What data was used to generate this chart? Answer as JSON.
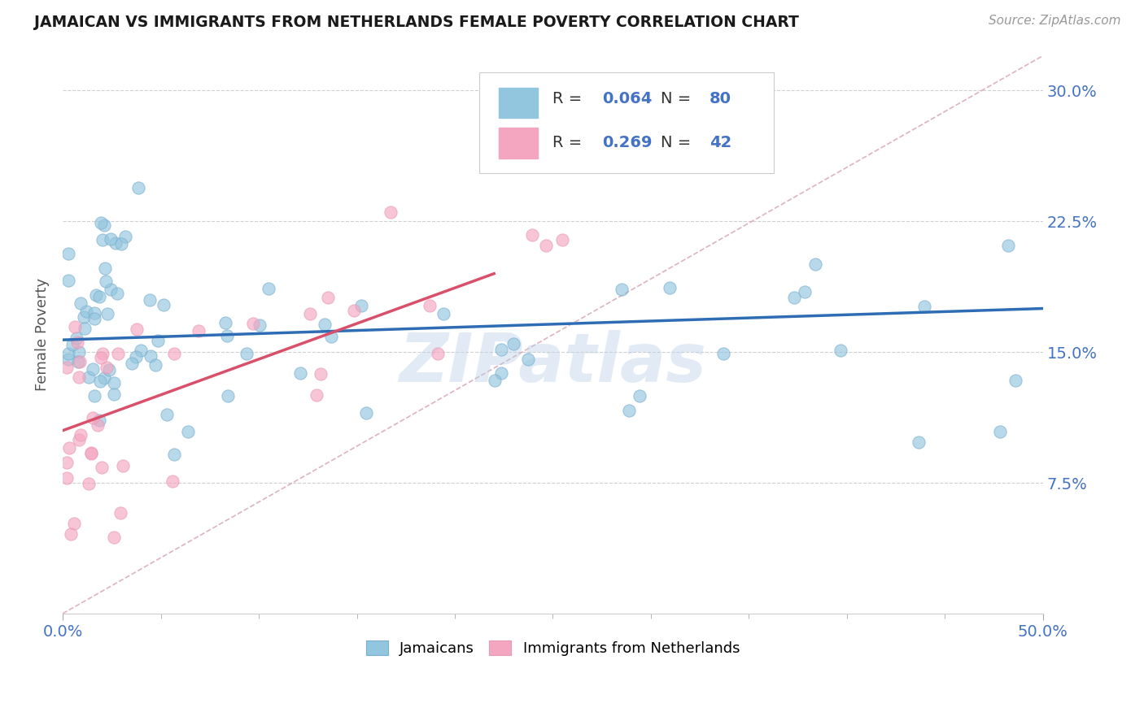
{
  "title": "JAMAICAN VS IMMIGRANTS FROM NETHERLANDS FEMALE POVERTY CORRELATION CHART",
  "source": "Source: ZipAtlas.com",
  "ylabel": "Female Poverty",
  "y_tick_values": [
    7.5,
    15.0,
    22.5,
    30.0
  ],
  "y_tick_labels": [
    "7.5%",
    "15.0%",
    "22.5%",
    "30.0%"
  ],
  "xlim": [
    0.0,
    50.0
  ],
  "ylim": [
    0.0,
    32.0
  ],
  "color_jamaican": "#92c5de",
  "color_netherlands": "#f4a6c0",
  "color_trendline_jamaican": "#2e6db4",
  "color_trendline_netherlands": "#d9506a",
  "color_dashed_ref": "#d4a0b0",
  "color_grid": "#d0d0d0",
  "color_title": "#1a1a1a",
  "color_axis": "#4472c4",
  "color_legend_label": "#333333",
  "color_legend_value": "#4472c4",
  "watermark": "ZIPatlas",
  "jam_trendline_x": [
    0,
    50
  ],
  "jam_trendline_y": [
    15.7,
    17.5
  ],
  "neth_trendline_x": [
    0,
    22
  ],
  "neth_trendline_y": [
    10.5,
    19.5
  ],
  "ref_line_x": [
    0,
    50
  ],
  "ref_line_y": [
    0,
    32
  ]
}
